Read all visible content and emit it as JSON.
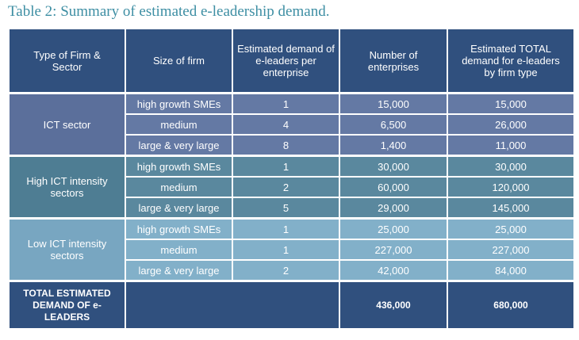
{
  "title": "Table 2: Summary of estimated e-leadership demand.",
  "headers": [
    "Type of Firm & Sector",
    "Size of firm",
    "Estimated demand of e-leaders per enterprise",
    "Number of enterprises",
    "Estimated TOTAL demand for e-leaders by firm type"
  ],
  "groups": [
    {
      "sector": "ICT sector",
      "rows": [
        {
          "size": "high growth SMEs",
          "per": "1",
          "num": "15,000",
          "total": "15,000"
        },
        {
          "size": "medium",
          "per": "4",
          "num": "6,500",
          "total": "26,000"
        },
        {
          "size": "large & very large",
          "per": "8",
          "num": "1,400",
          "total": "11,000"
        }
      ]
    },
    {
      "sector": "High ICT intensity sectors",
      "rows": [
        {
          "size": "high growth SMEs",
          "per": "1",
          "num": "30,000",
          "total": "30,000"
        },
        {
          "size": "medium",
          "per": "2",
          "num": "60,000",
          "total": "120,000"
        },
        {
          "size": "large & very large",
          "per": "5",
          "num": "29,000",
          "total": "145,000"
        }
      ]
    },
    {
      "sector": "Low ICT intensity sectors",
      "rows": [
        {
          "size": "high growth SMEs",
          "per": "1",
          "num": "25,000",
          "total": "25,000"
        },
        {
          "size": "medium",
          "per": "1",
          "num": "227,000",
          "total": "227,000"
        },
        {
          "size": "large & very large",
          "per": "2",
          "num": "42,000",
          "total": "84,000"
        }
      ]
    }
  ],
  "total": {
    "label": "TOTAL ESTIMATED DEMAND OF e-LEADERS",
    "num": "436,000",
    "total": "680,000"
  }
}
